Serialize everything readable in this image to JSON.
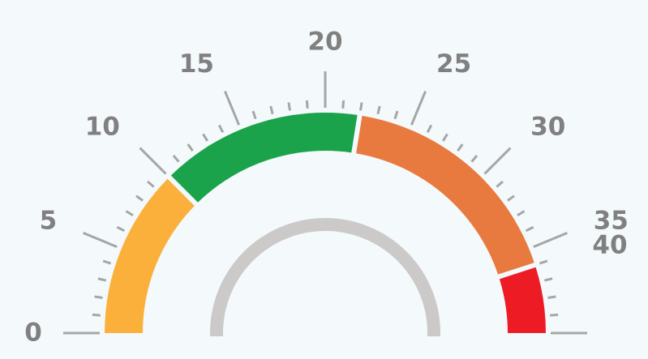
{
  "gauge": {
    "min": 0,
    "max": 40,
    "major_step": 5,
    "minor_step": 1,
    "tick_labels": [
      "0",
      "5",
      "10",
      "15",
      "20",
      "25",
      "30",
      "35",
      "40"
    ],
    "segments": [
      {
        "name": "yellow",
        "from": 0,
        "to": 10,
        "color": "#fbb03b"
      },
      {
        "name": "green",
        "from": 10,
        "to": 22,
        "color": "#1aa34a"
      },
      {
        "name": "orange",
        "from": 22,
        "to": 36,
        "color": "#e8793f"
      },
      {
        "name": "red",
        "from": 36,
        "to": 40,
        "color": "#ed1c24"
      }
    ],
    "inner_arc_color": "#cccac8",
    "tick_color": "#a6a6a6",
    "label_color": "#808080"
  }
}
